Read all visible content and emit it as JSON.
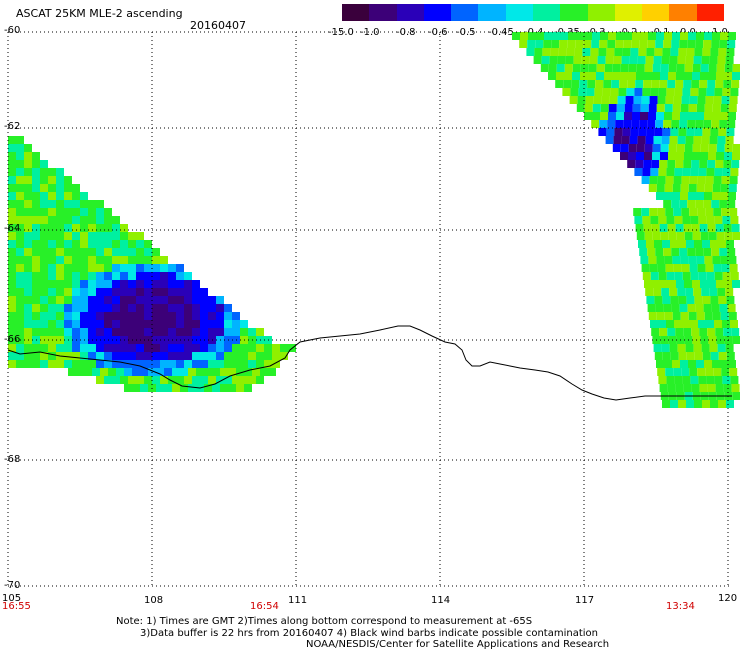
{
  "title": "ASCAT 25KM MLE-2 ascending",
  "date": "20160407",
  "colorbar": {
    "labels": [
      "-15.0",
      "-1.0",
      "-0.8",
      "-0.6",
      "-0.5",
      "-0.45",
      "-0.4",
      "-0.35",
      "-0.3",
      "-0.2",
      "-0.1",
      "0.0",
      "1.0"
    ],
    "colors": [
      "#3a003c",
      "#3c0078",
      "#2a00b8",
      "#0000ff",
      "#0064ff",
      "#00b4ff",
      "#00e8e8",
      "#00f0a0",
      "#28f028",
      "#90f000",
      "#e0f000",
      "#ffd000",
      "#ff8000",
      "#ff2000"
    ]
  },
  "axes": {
    "lon_ticks": [
      "105",
      "108",
      "111",
      "114",
      "117",
      "120"
    ],
    "lat_ticks": [
      "-60",
      "-62",
      "-64",
      "-66",
      "-68",
      "-70"
    ],
    "lon_range": [
      105,
      120
    ],
    "lat_range": [
      -60,
      -70
    ]
  },
  "pass_times": [
    "16:55",
    "16:54",
    "13:34"
  ],
  "notes": [
    "Note: 1) Times are GMT 2)Times along bottom correspond to measurement at -65S",
    "3)Data buffer is 22 hrs from 20160407 4) Black wind barbs indicate possible contamination",
    "NOAA/NESDIS/Center for Satellite Applications and Research"
  ],
  "colors": {
    "coastline": "#000000",
    "grid": "#000000",
    "time_label": "#d00000"
  }
}
